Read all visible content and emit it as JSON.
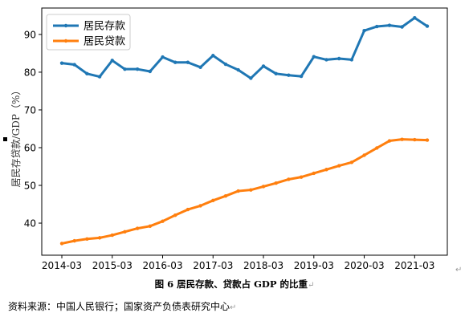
{
  "chart_data": {
    "type": "line",
    "title": "",
    "ylabel": "居民存贷款/GDP（%）",
    "xlabel": "",
    "ylim": [
      31.5,
      97
    ],
    "yticks": [
      40,
      50,
      60,
      70,
      80,
      90
    ],
    "xticks": [
      "2014-03",
      "2015-03",
      "2016-03",
      "2017-03",
      "2018-03",
      "2019-03",
      "2020-03",
      "2021-03"
    ],
    "x": [
      "2014-03",
      "2014-06",
      "2014-09",
      "2014-12",
      "2015-03",
      "2015-06",
      "2015-09",
      "2015-12",
      "2016-03",
      "2016-06",
      "2016-09",
      "2016-12",
      "2017-03",
      "2017-06",
      "2017-09",
      "2017-12",
      "2018-03",
      "2018-06",
      "2018-09",
      "2018-12",
      "2019-03",
      "2019-06",
      "2019-09",
      "2019-12",
      "2020-03",
      "2020-06",
      "2020-09",
      "2020-12",
      "2021-03",
      "2021-06"
    ],
    "series": [
      {
        "name": "居民存款",
        "color": "#1f77b4",
        "values": [
          82.4,
          82.0,
          79.6,
          78.8,
          83.1,
          80.8,
          80.8,
          80.2,
          84.0,
          82.6,
          82.6,
          81.3,
          84.4,
          82.1,
          80.6,
          78.4,
          81.6,
          79.6,
          79.2,
          78.9,
          84.1,
          83.3,
          83.6,
          83.3,
          91.0,
          92.1,
          92.4,
          92.0,
          94.4,
          92.2
        ]
      },
      {
        "name": "居民贷款",
        "color": "#ff7f0e",
        "values": [
          34.6,
          35.3,
          35.8,
          36.1,
          36.8,
          37.7,
          38.6,
          39.2,
          40.5,
          42.1,
          43.6,
          44.6,
          46.0,
          47.2,
          48.5,
          48.8,
          49.7,
          50.6,
          51.6,
          52.2,
          53.2,
          54.2,
          55.2,
          56.1,
          58.0,
          59.9,
          61.8,
          62.2,
          62.1,
          62.0
        ]
      }
    ],
    "legend": "top-left",
    "grid": false
  },
  "caption": {
    "text": "图  6 居民存款、贷款占 GDP 的比重",
    "mark": "↵"
  },
  "source": {
    "text": "资料来源：中国人民银行；国家资产负债表研究中心",
    "mark": "↵"
  },
  "end_mark": "↵"
}
